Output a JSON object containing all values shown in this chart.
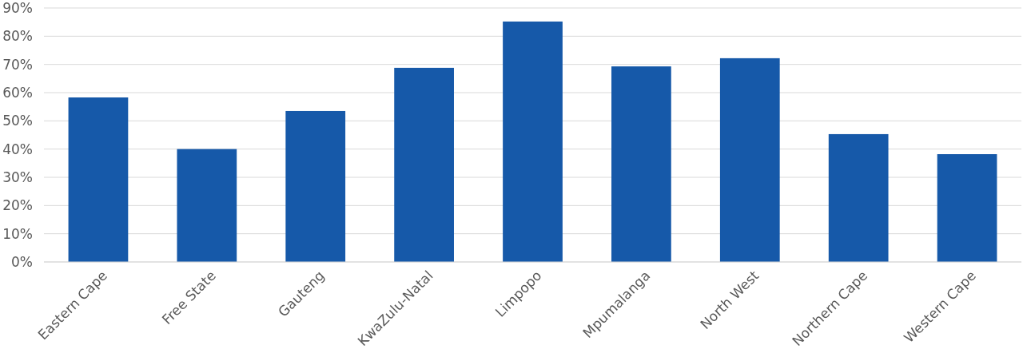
{
  "chart_data": {
    "type": "bar",
    "categories": [
      "Eastern Cape",
      "Free State",
      "Gauteng",
      "KwaZulu-Natal",
      "Limpopo",
      "Mpumalanga",
      "North West",
      "Northern Cape",
      "Western Cape"
    ],
    "values": [
      58.3,
      40,
      53.5,
      68.8,
      85.2,
      69.3,
      72.2,
      45.3,
      38.2
    ],
    "color": "#1659a9",
    "ylim": [
      0,
      90
    ],
    "yticks": [
      {
        "value": 0,
        "label": "0%"
      },
      {
        "value": 10,
        "label": "10%"
      },
      {
        "value": 20,
        "label": "20%"
      },
      {
        "value": 30,
        "label": "30%"
      },
      {
        "value": 40,
        "label": "40%"
      },
      {
        "value": 50,
        "label": "50%"
      },
      {
        "value": 60,
        "label": "60%"
      },
      {
        "value": 70,
        "label": "70%"
      },
      {
        "value": 80,
        "label": "80%"
      },
      {
        "value": 90,
        "label": "90%"
      }
    ],
    "grid": "y"
  }
}
